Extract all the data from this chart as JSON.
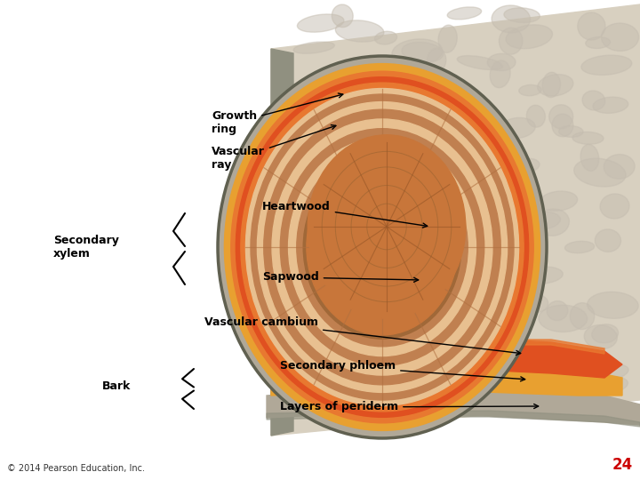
{
  "background_color": "#ffffff",
  "figure_size": [
    7.2,
    5.4
  ],
  "dpi": 100,
  "labels": {
    "growth_ring": "Growth\nring",
    "vascular_ray": "Vascular\nray",
    "heartwood": "Heartwood",
    "secondary_xylem": "Secondary\nxylem",
    "sapwood": "Sapwood",
    "vascular_cambium": "Vascular cambium",
    "bark": "Bark",
    "secondary_phloem": "Secondary phloem",
    "layers_of_periderm": "Layers of periderm",
    "copyright": "© 2014 Pearson Education, Inc.",
    "page_number": "24"
  },
  "colors": {
    "heartwood": "#c8763a",
    "heartwood_center": "#b86030",
    "sapwood": "#d8a870",
    "sapwood_light": "#e8c090",
    "growth_ring_dark": "#a05828",
    "vascular_cambium": "#e05020",
    "secondary_phloem": "#e8a030",
    "periderm": "#b0a898",
    "periderm_dark": "#909080",
    "bark_outer": "#d8d0c0",
    "log_side": "#d0c8b8",
    "log_side_dark": "#b8b0a0",
    "orange_thin": "#e87830",
    "wood_grain": "#c08050",
    "label_color": "#000000",
    "arrow_color": "#000000",
    "copyright_color": "#333333",
    "page_number_color": "#cc0000"
  },
  "font_sizes": {
    "labels": 9,
    "copyright": 7,
    "page_number": 12
  }
}
